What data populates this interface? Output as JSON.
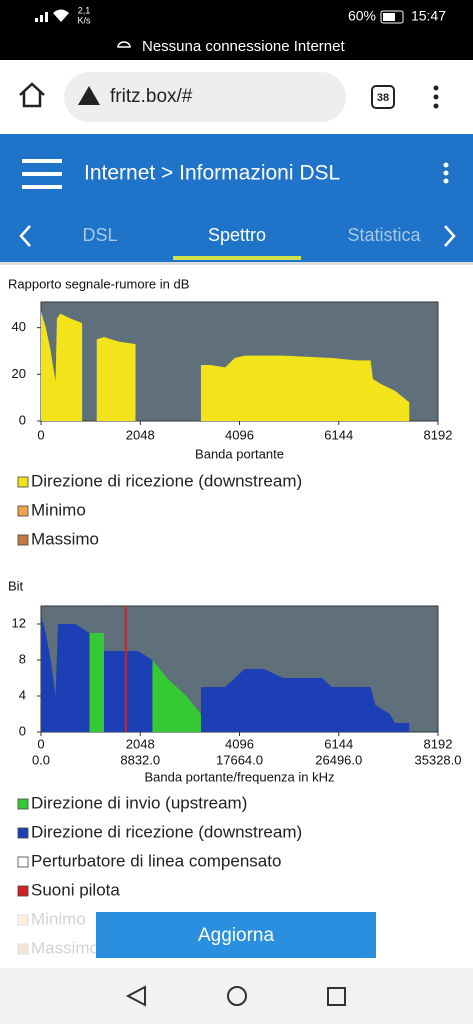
{
  "status_bar": {
    "speed": "2,1",
    "speed_unit": "K/s",
    "battery": "60%",
    "time": "15:47",
    "notice": "Nessuna connessione Internet"
  },
  "browser": {
    "url": "fritz.box/#",
    "tab_count": "38"
  },
  "header": {
    "title": "Internet > Informazioni DSL",
    "tabs": [
      "DSL",
      "Spettro",
      "Statistica"
    ]
  },
  "charts": [
    {
      "type": "area",
      "title": "Rapporto segnale-rumore in dB",
      "xlabel": "Banda portante",
      "xlim": [
        0,
        8192
      ],
      "xticks": [
        0,
        2048,
        4096,
        6144,
        8192
      ],
      "ylim": [
        0,
        51
      ],
      "yticks": [
        0,
        20,
        40
      ],
      "background": "#5f707b",
      "series": [
        {
          "color": "#f2e31b",
          "x": [
            0,
            100,
            200,
            300,
            330,
            400,
            600,
            850,
            900,
            1150,
            1300,
            1600,
            1950,
            2000,
            3300,
            3500,
            3800,
            4000,
            4200,
            5000,
            6000,
            6500,
            6800,
            6850,
            7000,
            7300,
            7600
          ],
          "values": [
            47,
            40,
            30,
            17,
            44,
            46,
            44,
            42,
            null,
            35,
            36,
            34,
            33,
            null,
            24,
            24,
            23,
            27,
            28,
            28,
            27,
            26,
            26,
            18,
            16,
            13,
            8
          ]
        }
      ],
      "legend": [
        {
          "name": "Direzione di ricezione (downstream)",
          "color": "#f2e31b"
        },
        {
          "name": "Minimo",
          "color": "#f0a24a"
        },
        {
          "name": "Massimo",
          "color": "#c47a3e"
        }
      ]
    },
    {
      "type": "area",
      "title": "Bit",
      "xlabel": "Banda portante/frequenza in kHz",
      "xlim": [
        0,
        8192
      ],
      "xticks": [
        0,
        2048,
        4096,
        6144,
        8192
      ],
      "x2lim": [
        0,
        35328
      ],
      "x2ticks": [
        {
          "value": 0,
          "label": "0.0"
        },
        {
          "value": 8832,
          "label": "8832.0"
        },
        {
          "value": 17664,
          "label": "17664.0"
        },
        {
          "value": 26496,
          "label": "26496.0"
        },
        {
          "value": 35328,
          "label": "35328.0"
        }
      ],
      "ylim": [
        0,
        14
      ],
      "yticks": [
        0,
        4,
        8,
        12
      ],
      "background": "#5f707b",
      "series": [
        {
          "color": "#1d3fb5",
          "x": [
            0,
            100,
            200,
            300,
            350,
            700,
            1000,
            1050,
            1300,
            1600,
            2000,
            2300,
            2350,
            3300,
            3800,
            4000,
            4200,
            4600,
            5000,
            5800,
            6000,
            6400,
            6800,
            6900,
            7200,
            7300,
            7600
          ],
          "values": [
            13,
            11,
            8,
            4,
            12,
            12,
            11,
            null,
            9,
            9,
            9,
            8,
            null,
            5,
            5,
            6,
            7,
            7,
            6,
            6,
            5,
            5,
            5,
            3,
            2,
            1,
            1
          ]
        },
        {
          "color": "#35c935",
          "x": [
            1000,
            1300,
            1350,
            2300,
            2600,
            3000,
            3300
          ],
          "values": [
            11,
            11,
            null,
            8,
            6,
            4,
            2
          ]
        }
      ],
      "pilot": {
        "color": "#d42020",
        "x": [
          1750
        ]
      },
      "legend": [
        {
          "name": "Direzione di invio (upstream)",
          "color": "#35c935"
        },
        {
          "name": "Direzione di ricezione (downstream)",
          "color": "#1d3fb5"
        },
        {
          "name": "Perturbatore di linea compensato",
          "color": "#ffffff"
        },
        {
          "name": "Suoni pilota",
          "color": "#d42020"
        },
        {
          "name": "Minimo",
          "color": "#f0a24a"
        },
        {
          "name": "Massimo",
          "color": "#c47a3e"
        }
      ]
    }
  ],
  "button": "Aggiorna"
}
